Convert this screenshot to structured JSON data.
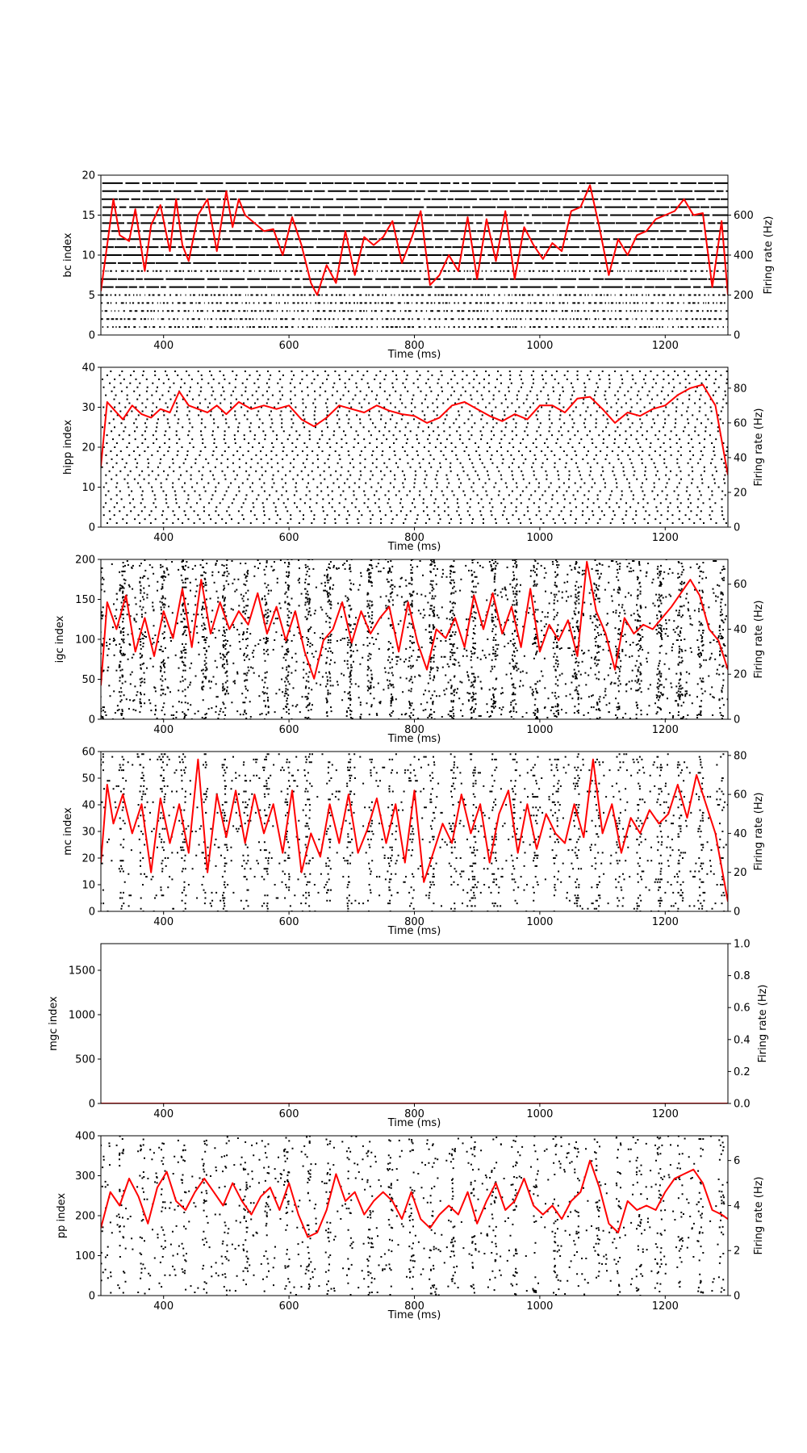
{
  "chart_data": [
    {
      "type": "scatter",
      "ylabel": "bc index",
      "xlabel": "Time (ms)",
      "y2label": "Firing rate (Hz)",
      "xlim": [
        300,
        1300
      ],
      "ylim": [
        0,
        20
      ],
      "y2lim": [
        0,
        800
      ],
      "xticks": [
        400,
        600,
        800,
        1000,
        1200
      ],
      "yticks": [
        0,
        5,
        10,
        15,
        20
      ],
      "y2ticks": [
        0,
        200,
        400,
        600
      ],
      "raster": {
        "neurons": [
          1,
          19
        ],
        "rows": "all",
        "rate_per_neuron_hz": 190,
        "dash_rows": [
          6,
          7,
          9,
          10,
          11,
          12,
          13,
          14,
          15,
          16,
          17,
          18,
          19
        ]
      },
      "series": [
        {
          "values_x": [
            300,
            310,
            320,
            330,
            345,
            355,
            370,
            380,
            395,
            410,
            420,
            430,
            440,
            455,
            470,
            485,
            500,
            510,
            520,
            530,
            545,
            560,
            575,
            590,
            605,
            620,
            635,
            645,
            660,
            675,
            690,
            705,
            720,
            735,
            750,
            765,
            780,
            795,
            810,
            825,
            840,
            855,
            870,
            885,
            900,
            915,
            930,
            945,
            960,
            975,
            990,
            1005,
            1020,
            1035,
            1050,
            1065,
            1080,
            1095,
            1110,
            1125,
            1140,
            1155,
            1170,
            1185,
            1200,
            1215,
            1230,
            1245,
            1260,
            1275,
            1290,
            1300
          ],
          "values_y": [
            220,
            450,
            680,
            500,
            470,
            630,
            320,
            550,
            650,
            420,
            680,
            450,
            370,
            600,
            680,
            420,
            720,
            540,
            680,
            600,
            560,
            520,
            530,
            400,
            590,
            450,
            260,
            200,
            350,
            260,
            520,
            300,
            490,
            450,
            490,
            570,
            360,
            480,
            620,
            250,
            300,
            400,
            320,
            590,
            280,
            580,
            370,
            620,
            280,
            540,
            450,
            380,
            460,
            420,
            620,
            640,
            750,
            540,
            300,
            480,
            400,
            500,
            520,
            580,
            600,
            620,
            680,
            600,
            610,
            240,
            570,
            200
          ]
        }
      ]
    },
    {
      "type": "scatter",
      "ylabel": "hipp index",
      "xlabel": "Time (ms)",
      "y2label": "Firing rate (Hz)",
      "xlim": [
        300,
        1300
      ],
      "ylim": [
        0,
        40
      ],
      "y2lim": [
        0,
        92
      ],
      "xticks": [
        400,
        600,
        800,
        1000,
        1200
      ],
      "yticks": [
        0,
        10,
        20,
        30,
        40
      ],
      "y2ticks": [
        0,
        20,
        40,
        60,
        80
      ],
      "raster": {
        "neurons": [
          1,
          39
        ],
        "spikes_per_neuron": 54
      },
      "series": [
        {
          "values_x": [
            300,
            310,
            320,
            335,
            350,
            365,
            380,
            395,
            410,
            425,
            440,
            455,
            470,
            485,
            500,
            520,
            540,
            560,
            580,
            600,
            620,
            640,
            660,
            680,
            700,
            720,
            740,
            760,
            780,
            800,
            820,
            840,
            860,
            880,
            900,
            920,
            940,
            960,
            980,
            1000,
            1020,
            1040,
            1060,
            1080,
            1100,
            1120,
            1140,
            1160,
            1180,
            1200,
            1220,
            1240,
            1260,
            1280,
            1300
          ],
          "values_y": [
            35,
            72,
            68,
            62,
            70,
            65,
            63,
            68,
            66,
            78,
            70,
            68,
            66,
            70,
            65,
            72,
            68,
            70,
            68,
            70,
            62,
            58,
            63,
            70,
            68,
            66,
            70,
            67,
            65,
            64,
            60,
            63,
            70,
            72,
            68,
            64,
            61,
            65,
            62,
            70,
            70,
            66,
            74,
            75,
            68,
            60,
            66,
            64,
            68,
            70,
            76,
            80,
            82,
            70,
            30
          ]
        }
      ]
    },
    {
      "type": "scatter",
      "ylabel": "igc index",
      "xlabel": "Time (ms)",
      "y2label": "Firing rate (Hz)",
      "xlim": [
        300,
        1300
      ],
      "ylim": [
        0,
        200
      ],
      "y2lim": [
        0,
        71
      ],
      "xticks": [
        400,
        600,
        800,
        1000,
        1200
      ],
      "yticks": [
        0,
        50,
        100,
        150,
        200
      ],
      "y2ticks": [
        0,
        20,
        40,
        60
      ],
      "raster": {
        "neurons": [
          0,
          200
        ],
        "spike_count": 3400
      },
      "series": [
        {
          "values_x": [
            300,
            310,
            325,
            340,
            355,
            370,
            385,
            400,
            415,
            430,
            445,
            460,
            475,
            490,
            505,
            520,
            535,
            550,
            565,
            580,
            595,
            610,
            625,
            640,
            655,
            670,
            685,
            700,
            715,
            730,
            745,
            760,
            775,
            790,
            805,
            820,
            835,
            850,
            865,
            880,
            895,
            910,
            925,
            940,
            955,
            970,
            985,
            1000,
            1015,
            1030,
            1045,
            1060,
            1075,
            1090,
            1105,
            1120,
            1135,
            1150,
            1165,
            1180,
            1195,
            1210,
            1225,
            1240,
            1255,
            1270,
            1285,
            1300
          ],
          "values_y": [
            15,
            52,
            40,
            55,
            30,
            45,
            28,
            48,
            36,
            58,
            32,
            62,
            38,
            52,
            40,
            48,
            42,
            56,
            38,
            50,
            35,
            48,
            30,
            18,
            35,
            40,
            52,
            34,
            48,
            38,
            45,
            50,
            30,
            52,
            34,
            22,
            40,
            36,
            45,
            32,
            55,
            40,
            56,
            38,
            50,
            32,
            58,
            30,
            42,
            35,
            44,
            28,
            70,
            48,
            38,
            22,
            45,
            38,
            42,
            40,
            45,
            50,
            56,
            62,
            55,
            40,
            35,
            22
          ]
        }
      ]
    },
    {
      "type": "scatter",
      "ylabel": "mc index",
      "xlabel": "Time (ms)",
      "y2label": "Firing rate (Hz)",
      "xlim": [
        300,
        1300
      ],
      "ylim": [
        0,
        60
      ],
      "y2lim": [
        0,
        82
      ],
      "xticks": [
        400,
        600,
        800,
        1000,
        1200
      ],
      "yticks": [
        0,
        10,
        20,
        30,
        40,
        50,
        60
      ],
      "y2ticks": [
        0,
        20,
        40,
        60,
        80
      ],
      "raster": {
        "neurons": [
          0,
          59
        ],
        "spike_count": 1900
      },
      "series": [
        {
          "values_x": [
            300,
            310,
            320,
            335,
            350,
            365,
            380,
            395,
            410,
            425,
            440,
            455,
            470,
            485,
            500,
            515,
            530,
            545,
            560,
            575,
            590,
            605,
            620,
            635,
            650,
            665,
            680,
            695,
            710,
            725,
            740,
            755,
            770,
            785,
            800,
            815,
            830,
            845,
            860,
            875,
            890,
            905,
            920,
            935,
            950,
            965,
            980,
            995,
            1010,
            1025,
            1040,
            1055,
            1070,
            1085,
            1100,
            1115,
            1130,
            1145,
            1160,
            1175,
            1190,
            1205,
            1220,
            1235,
            1250,
            1265,
            1280,
            1300
          ],
          "values_y": [
            25,
            65,
            45,
            60,
            40,
            55,
            20,
            58,
            35,
            55,
            30,
            78,
            20,
            60,
            38,
            62,
            35,
            60,
            40,
            55,
            30,
            62,
            20,
            40,
            28,
            55,
            35,
            60,
            30,
            42,
            58,
            35,
            55,
            25,
            62,
            15,
            30,
            45,
            35,
            60,
            40,
            55,
            25,
            50,
            62,
            30,
            55,
            32,
            50,
            40,
            35,
            55,
            38,
            78,
            40,
            55,
            30,
            48,
            40,
            52,
            45,
            50,
            65,
            48,
            70,
            55,
            40,
            5
          ]
        }
      ]
    },
    {
      "type": "scatter",
      "ylabel": "mgc index",
      "xlabel": "Time (ms)",
      "y2label": "Firing rate (Hz)",
      "xlim": [
        300,
        1300
      ],
      "ylim": [
        0,
        1800
      ],
      "y2lim": [
        0,
        1.0
      ],
      "xticks": [
        400,
        600,
        800,
        1000,
        1200
      ],
      "yticks": [
        0,
        500,
        1000,
        1500
      ],
      "y2ticks": [
        0.0,
        0.2,
        0.4,
        0.6,
        0.8,
        1.0
      ],
      "raster": {
        "neurons": [
          0,
          0
        ],
        "spike_count": 0
      },
      "series": [
        {
          "values_x": [
            300,
            1300
          ],
          "values_y": [
            0,
            0
          ]
        }
      ]
    },
    {
      "type": "scatter",
      "ylabel": "pp index",
      "xlabel": "Time (ms)",
      "y2label": "Firing rate (Hz)",
      "xlim": [
        300,
        1300
      ],
      "ylim": [
        0,
        400
      ],
      "y2lim": [
        0,
        7.1
      ],
      "xticks": [
        400,
        600,
        800,
        1000,
        1200
      ],
      "yticks": [
        0,
        100,
        200,
        300,
        400
      ],
      "y2ticks": [
        0,
        2,
        4,
        6
      ],
      "raster": {
        "neurons": [
          0,
          399
        ],
        "spike_count": 1500
      },
      "series": [
        {
          "values_x": [
            300,
            315,
            330,
            345,
            360,
            375,
            390,
            405,
            420,
            435,
            450,
            465,
            480,
            495,
            510,
            525,
            540,
            555,
            570,
            585,
            600,
            615,
            630,
            645,
            660,
            675,
            690,
            705,
            720,
            735,
            750,
            765,
            780,
            795,
            810,
            825,
            840,
            855,
            870,
            885,
            900,
            915,
            930,
            945,
            960,
            975,
            990,
            1005,
            1020,
            1035,
            1050,
            1065,
            1080,
            1095,
            1110,
            1125,
            1140,
            1155,
            1170,
            1185,
            1200,
            1215,
            1230,
            1245,
            1260,
            1275,
            1290,
            1300
          ],
          "values_y": [
            3.0,
            4.6,
            4.0,
            5.2,
            4.4,
            3.2,
            4.8,
            5.5,
            4.2,
            3.8,
            4.6,
            5.2,
            4.6,
            4.0,
            5.0,
            4.2,
            3.6,
            4.4,
            4.8,
            3.8,
            5.0,
            3.6,
            2.6,
            2.8,
            3.8,
            5.4,
            4.2,
            4.6,
            3.6,
            4.2,
            4.6,
            4.2,
            3.4,
            4.6,
            3.4,
            3.0,
            3.6,
            4.0,
            3.6,
            4.6,
            3.2,
            4.2,
            5.0,
            3.8,
            4.2,
            5.2,
            4.0,
            3.6,
            4.0,
            3.4,
            4.2,
            4.6,
            6.0,
            4.8,
            3.2,
            2.8,
            4.2,
            3.8,
            4.0,
            3.8,
            4.6,
            5.2,
            5.4,
            5.6,
            5.0,
            3.8,
            3.6,
            3.4
          ]
        }
      ]
    }
  ],
  "colors": {
    "rate_line": "#ff0000",
    "spikes": "#000000",
    "axes": "#000000"
  }
}
